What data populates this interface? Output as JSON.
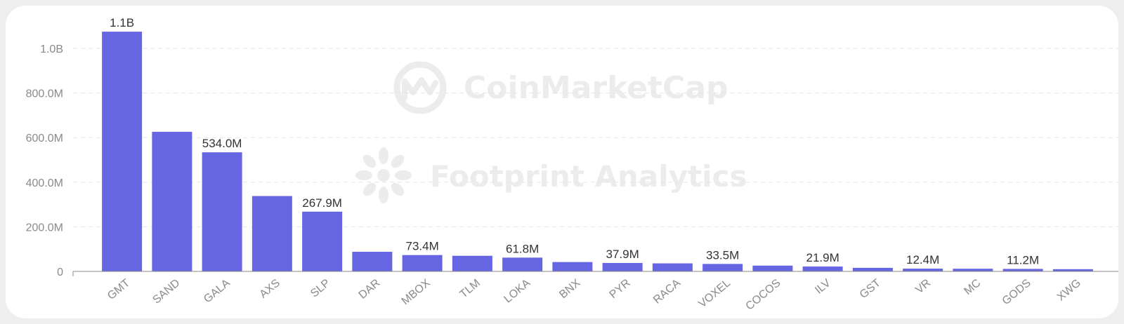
{
  "watermarks": {
    "top": "CoinMarketCap",
    "middle": "Footprint Analytics"
  },
  "colors": {
    "bar": "#6666e3",
    "grid": "#e6e6e6",
    "axis": "#8a8a8a",
    "watermark": "#ececec"
  },
  "chart_data": {
    "type": "bar",
    "title": "",
    "xlabel": "",
    "ylabel": "",
    "ylim": [
      0,
      1100000000
    ],
    "yticks": [
      0,
      200000000,
      400000000,
      600000000,
      800000000,
      1000000000
    ],
    "ytick_labels": [
      "0",
      "200.0M",
      "400.0M",
      "600.0M",
      "800.0M",
      "1.0B"
    ],
    "grid": true,
    "categories": [
      "GMT",
      "SAND",
      "GALA",
      "AXS",
      "SLP",
      "DAR",
      "MBOX",
      "TLM",
      "LOKA",
      "BNX",
      "PYR",
      "RACA",
      "VOXEL",
      "COCOS",
      "ILV",
      "GST",
      "VR",
      "MC",
      "GODS",
      "XWG"
    ],
    "values": [
      1075000000,
      626000000,
      534000000,
      338000000,
      267900000,
      88000000,
      73400000,
      70000000,
      61800000,
      42000000,
      37900000,
      36000000,
      33500000,
      26000000,
      21900000,
      16000000,
      12400000,
      12000000,
      11200000,
      10000000
    ],
    "data_labels": [
      "1.1B",
      "",
      "534.0M",
      "",
      "267.9M",
      "",
      "73.4M",
      "",
      "61.8M",
      "",
      "37.9M",
      "",
      "33.5M",
      "",
      "21.9M",
      "",
      "12.4M",
      "",
      "11.2M",
      ""
    ]
  }
}
